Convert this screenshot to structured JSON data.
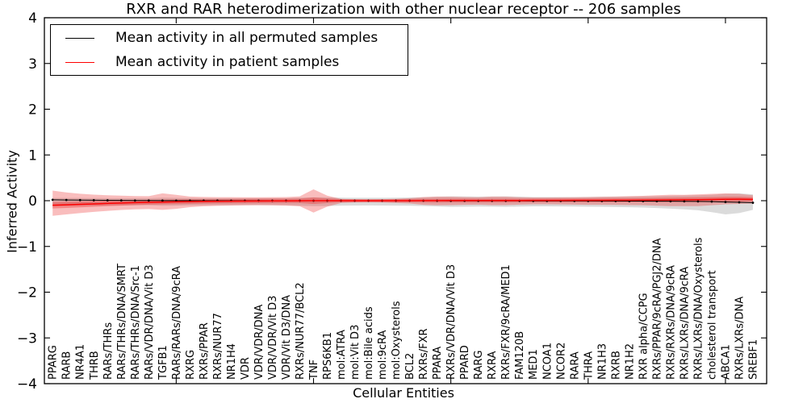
{
  "chart_data": {
    "type": "line",
    "title": "RXR and RAR heterodimerization with other nuclear receptor -- 206 samples",
    "xlabel": "Cellular Entities",
    "ylabel": "Inferred Activity",
    "ylim": [
      -4,
      4
    ],
    "yticks": [
      -4,
      -3,
      -2,
      -1,
      0,
      1,
      2,
      3,
      4
    ],
    "ytick_labels": [
      "−4",
      "−3",
      "−2",
      "−1",
      "0",
      "1",
      "2",
      "3",
      "4"
    ],
    "xtick_major_indices": [
      9,
      19,
      29,
      39,
      49
    ],
    "grid": false,
    "legend_position": "upper left",
    "legend": [
      {
        "label": "Mean activity in all permuted samples",
        "color": "#000000"
      },
      {
        "label": "Mean activity in patient samples",
        "color": "#ff0000"
      }
    ],
    "categories": [
      "PPARG",
      "RARB",
      "NR4A1",
      "THRB",
      "RARs/THRs",
      "RARs/THRs/DNA/SMRT",
      "RARs/THRs/DNA/Src-1",
      "RARs/VDR/DNA/Vit D3",
      "TGFB1",
      "RARs/RARs/DNA/9cRA",
      "RXRG",
      "RXRs/PPAR",
      "RXRs/NUR77",
      "NR1H4",
      "VDR",
      "VDR/VDR/DNA",
      "VDR/VDR/Vit D3",
      "VDR/Vit D3/DNA",
      "RXRs/NUR77/BCL2",
      "TNF",
      "RPS6KB1",
      "mol:ATRA",
      "mol:Vit D3",
      "mol:Bile acids",
      "mol:9cRA",
      "mol:Oxysterols",
      "BCL2",
      "RXRs/FXR",
      "PPARA",
      "RXRs/VDR/DNA/Vit D3",
      "PPARD",
      "RARG",
      "RXRA",
      "RXRs/FXR/9cRA/MED1",
      "FAM120B",
      "MED1",
      "NCOA1",
      "NCOR2",
      "RARA",
      "THRA",
      "NR1H3",
      "RXRB",
      "NR1H2",
      "RXR alpha/CCPG",
      "RXRs/PPAR/9cRA/PGJ2/DNA",
      "RXRs/RXRs/DNA/9cRA",
      "RXRs/LXRs/DNA/9cRA",
      "RXRs/LXRs/DNA/Oxysterols",
      "cholesterol transport",
      "ABCA1",
      "RXRs/LXRs/DNA",
      "SREBF1"
    ],
    "series": [
      {
        "name": "Mean activity in all permuted samples",
        "line_color": "#000000",
        "marker": "dot",
        "band_color": "rgba(125,125,125,0.28)",
        "values": [
          0.02,
          0.016,
          0.013,
          0.01,
          0.008,
          0.006,
          0.005,
          0.004,
          0.003,
          0.002,
          0.002,
          0.001,
          0.001,
          0,
          0,
          0,
          0,
          0,
          0,
          0,
          0,
          0,
          0,
          0,
          0,
          0,
          0,
          0,
          -0.001,
          -0.002,
          -0.002,
          -0.002,
          -0.003,
          -0.003,
          -0.003,
          -0.004,
          -0.004,
          -0.004,
          -0.005,
          -0.005,
          -0.006,
          -0.007,
          -0.008,
          -0.009,
          -0.01,
          -0.012,
          -0.014,
          -0.016,
          -0.02,
          -0.028,
          -0.035,
          -0.045
        ],
        "band_upper": [
          0.06,
          0.06,
          0.06,
          0.058,
          0.056,
          0.055,
          0.055,
          0.055,
          0.065,
          0.062,
          0.058,
          0.056,
          0.055,
          0.055,
          0.055,
          0.055,
          0.055,
          0.056,
          0.065,
          0.075,
          0.072,
          0.066,
          0.064,
          0.064,
          0.064,
          0.066,
          0.07,
          0.075,
          0.085,
          0.095,
          0.092,
          0.088,
          0.09,
          0.094,
          0.088,
          0.08,
          0.079,
          0.079,
          0.08,
          0.082,
          0.085,
          0.088,
          0.09,
          0.094,
          0.1,
          0.108,
          0.114,
          0.12,
          0.13,
          0.15,
          0.16,
          0.138
        ],
        "band_lower": [
          -0.12,
          -0.115,
          -0.11,
          -0.105,
          -0.102,
          -0.1,
          -0.1,
          -0.1,
          -0.11,
          -0.108,
          -0.102,
          -0.1,
          -0.098,
          -0.096,
          -0.095,
          -0.095,
          -0.096,
          -0.1,
          -0.11,
          -0.12,
          -0.116,
          -0.108,
          -0.105,
          -0.104,
          -0.105,
          -0.107,
          -0.11,
          -0.116,
          -0.125,
          -0.135,
          -0.132,
          -0.128,
          -0.13,
          -0.134,
          -0.128,
          -0.124,
          -0.124,
          -0.125,
          -0.128,
          -0.133,
          -0.135,
          -0.138,
          -0.143,
          -0.15,
          -0.16,
          -0.174,
          -0.19,
          -0.21,
          -0.25,
          -0.3,
          -0.27,
          -0.2
        ]
      },
      {
        "name": "Mean activity in patient samples",
        "line_color": "#ff0000",
        "marker": "none",
        "band_color": "rgba(235,35,35,0.3)",
        "inner_band_color": "rgba(235,35,35,0.35)",
        "values": [
          -0.1,
          -0.09,
          -0.08,
          -0.07,
          -0.06,
          -0.05,
          -0.042,
          -0.035,
          -0.03,
          -0.025,
          -0.02,
          -0.016,
          -0.013,
          -0.01,
          -0.008,
          -0.006,
          -0.005,
          -0.004,
          -0.002,
          0,
          0,
          0,
          0,
          0,
          0,
          0,
          0.001,
          0.002,
          0.003,
          0.004,
          0.004,
          0.004,
          0.005,
          0.005,
          0.005,
          0.006,
          0.006,
          0.007,
          0.008,
          0.008,
          0.009,
          0.01,
          0.012,
          0.014,
          0.016,
          0.018,
          0.02,
          0.023,
          0.026,
          0.03,
          0.032,
          0.028
        ],
        "band_upper": [
          0.22,
          0.18,
          0.152,
          0.132,
          0.12,
          0.11,
          0.102,
          0.1,
          0.16,
          0.128,
          0.09,
          0.082,
          0.078,
          0.076,
          0.075,
          0.075,
          0.076,
          0.08,
          0.095,
          0.25,
          0.11,
          0.04,
          0.032,
          0.03,
          0.032,
          0.04,
          0.055,
          0.08,
          0.09,
          0.088,
          0.08,
          0.075,
          0.09,
          0.088,
          0.075,
          0.07,
          0.07,
          0.072,
          0.075,
          0.08,
          0.085,
          0.09,
          0.1,
          0.105,
          0.12,
          0.13,
          0.128,
          0.138,
          0.15,
          0.16,
          0.15,
          0.118
        ],
        "band_lower": [
          -0.33,
          -0.3,
          -0.27,
          -0.245,
          -0.222,
          -0.202,
          -0.19,
          -0.182,
          -0.2,
          -0.178,
          -0.14,
          -0.122,
          -0.112,
          -0.105,
          -0.101,
          -0.1,
          -0.102,
          -0.108,
          -0.122,
          -0.26,
          -0.13,
          -0.05,
          -0.04,
          -0.038,
          -0.04,
          -0.05,
          -0.062,
          -0.09,
          -0.1,
          -0.098,
          -0.09,
          -0.085,
          -0.098,
          -0.098,
          -0.085,
          -0.08,
          -0.08,
          -0.082,
          -0.086,
          -0.09,
          -0.09,
          -0.092,
          -0.098,
          -0.1,
          -0.11,
          -0.12,
          -0.118,
          -0.118,
          -0.1,
          -0.08,
          -0.07,
          -0.06
        ],
        "inner_band_upper": [
          -0.03,
          -0.024,
          -0.018,
          -0.01,
          -0.002,
          0.006,
          0.012,
          0.018,
          0.022,
          0.026,
          0.03,
          0.033,
          0.036,
          0.038,
          0.04,
          0.042,
          0.043,
          0.044,
          0.046,
          0.07,
          0.05,
          0.035,
          0.032,
          0.03,
          0.032,
          0.035,
          0.038,
          0.042,
          0.045,
          0.046,
          0.046,
          0.045,
          0.047,
          0.047,
          0.045,
          0.045,
          0.045,
          0.046,
          0.047,
          0.048,
          0.05,
          0.052,
          0.055,
          0.058,
          0.062,
          0.066,
          0.07,
          0.074,
          0.08,
          0.085,
          0.085,
          0.075
        ],
        "inner_band_lower": [
          -0.17,
          -0.158,
          -0.145,
          -0.132,
          -0.12,
          -0.107,
          -0.096,
          -0.087,
          -0.08,
          -0.075,
          -0.07,
          -0.064,
          -0.06,
          -0.057,
          -0.055,
          -0.053,
          -0.052,
          -0.051,
          -0.05,
          -0.07,
          -0.05,
          -0.035,
          -0.032,
          -0.03,
          -0.032,
          -0.035,
          -0.036,
          -0.038,
          -0.04,
          -0.038,
          -0.038,
          -0.037,
          -0.037,
          -0.037,
          -0.035,
          -0.033,
          -0.033,
          -0.032,
          -0.031,
          -0.032,
          -0.032,
          -0.032,
          -0.031,
          -0.03,
          -0.03,
          -0.03,
          -0.03,
          -0.028,
          -0.028,
          -0.025,
          -0.021,
          -0.019
        ]
      }
    ]
  }
}
